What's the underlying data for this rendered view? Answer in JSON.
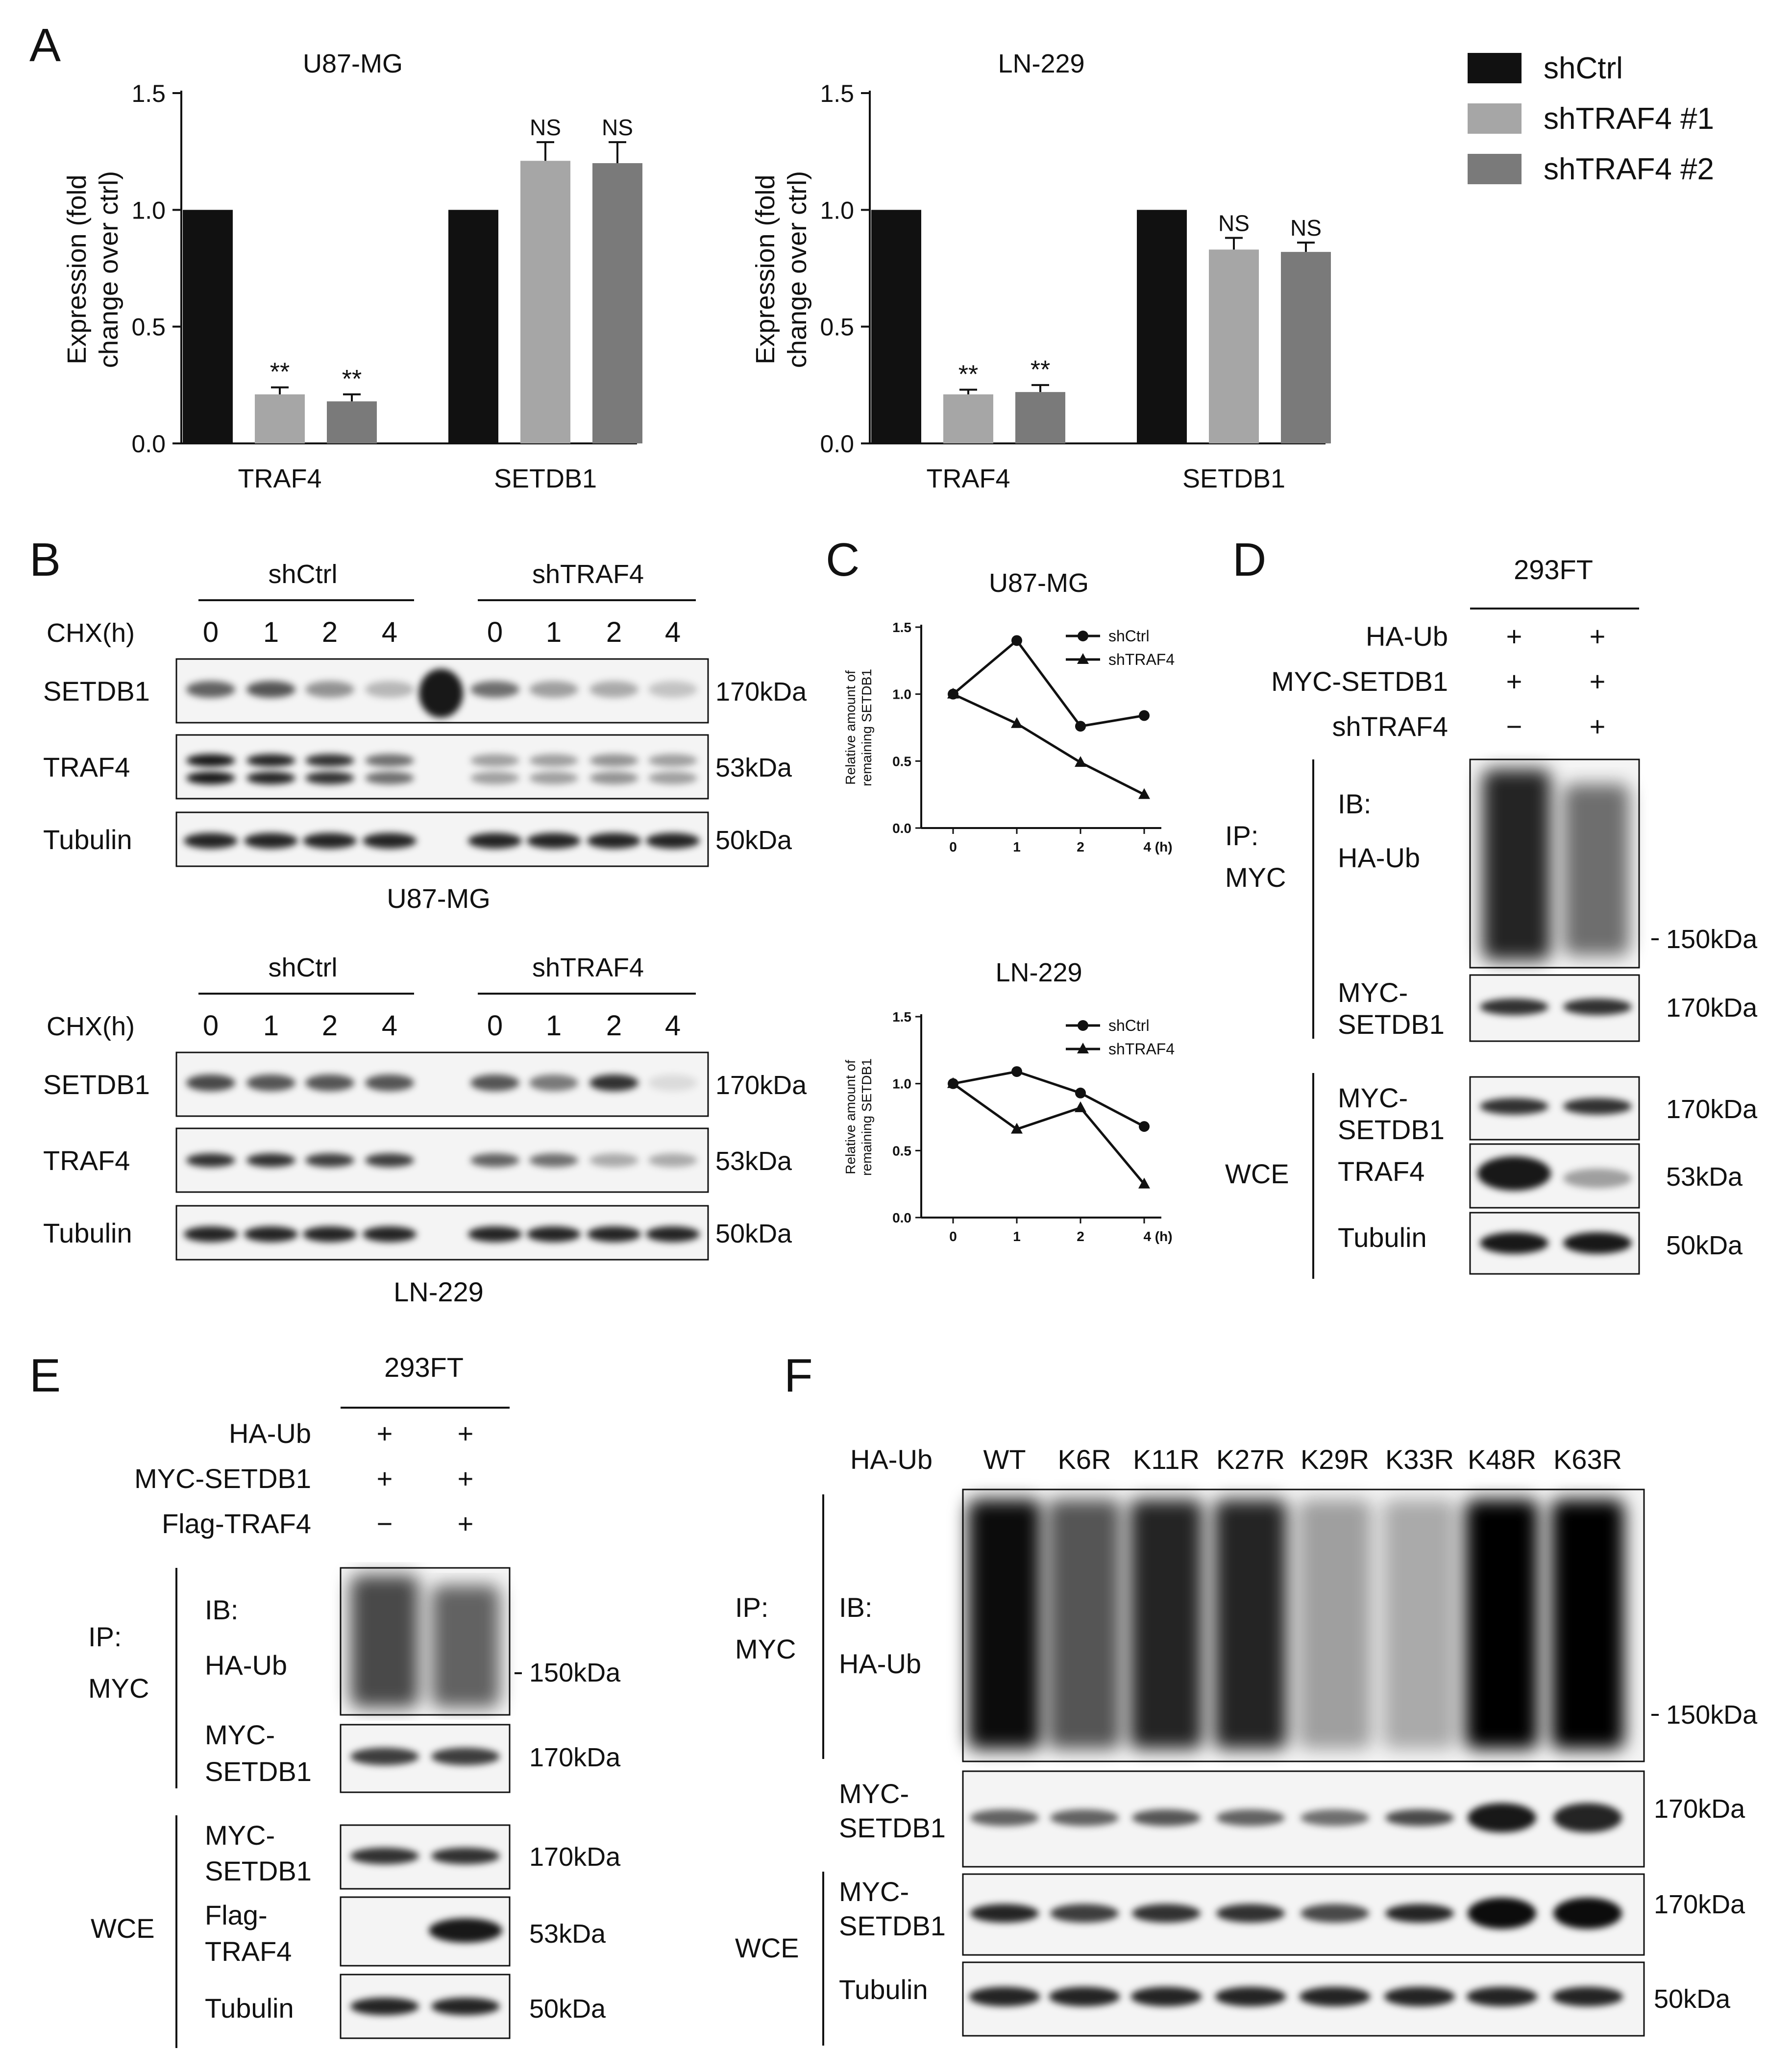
{
  "panels": {
    "A": {
      "letter": "A",
      "legend": [
        {
          "label": "shCtrl",
          "color": "#111111"
        },
        {
          "label": "shTRAF4 #1",
          "color": "#a6a6a6"
        },
        {
          "label": "shTRAF4 #2",
          "color": "#7a7a7a"
        }
      ],
      "ylabel_lines": [
        "Expression (fold",
        "change over ctrl)"
      ],
      "yticks": [
        "0.0",
        "0.5",
        "1.0",
        "1.5"
      ]
    },
    "B": {
      "letter": "B",
      "group_labels": [
        "shCtrl",
        "shTRAF4"
      ],
      "chx_label": "CHX(h)",
      "times": [
        "0",
        "1",
        "2",
        "4",
        "0",
        "1",
        "2",
        "4"
      ],
      "row_labels": [
        "SETDB1",
        "TRAF4",
        "Tubulin"
      ],
      "kda": [
        "170kDa",
        "53kDa",
        "50kDa"
      ],
      "cell_lines": [
        "U87-MG",
        "LN-229"
      ]
    },
    "C": {
      "letter": "C",
      "ylabel_lines": [
        "Relative amount of",
        "remaining SETDB1"
      ],
      "xticks": [
        "0",
        "1",
        "2",
        "4 (h)"
      ],
      "yticks": [
        "0.0",
        "0.5",
        "1.0",
        "1.5"
      ]
    },
    "D": {
      "letter": "D",
      "cell": "293FT",
      "conditions": [
        {
          "label": "HA-Ub",
          "signs": [
            "+",
            "+"
          ]
        },
        {
          "label": "MYC-SETDB1",
          "signs": [
            "+",
            "+"
          ]
        },
        {
          "label": "shTRAF4",
          "signs": [
            "−",
            "+"
          ]
        }
      ],
      "ip": [
        "IP:",
        "MYC"
      ],
      "ib": [
        "IB:",
        "HA-Ub"
      ],
      "myc_setdb1": [
        "MYC-",
        "SETDB1"
      ],
      "wce": "WCE",
      "traf4": "TRAF4",
      "tubulin": "Tubulin",
      "kda": [
        "150kDa",
        "170kDa",
        "170kDa",
        "53kDa",
        "50kDa"
      ]
    },
    "E": {
      "letter": "E",
      "cell": "293FT",
      "conditions": [
        {
          "label": "HA-Ub",
          "signs": [
            "+",
            "+"
          ]
        },
        {
          "label": "MYC-SETDB1",
          "signs": [
            "+",
            "+"
          ]
        },
        {
          "label": "Flag-TRAF4",
          "signs": [
            "−",
            "+"
          ]
        }
      ],
      "ip": [
        "IP:",
        "MYC"
      ],
      "ib": [
        "IB:",
        "HA-Ub"
      ],
      "myc_setdb1": [
        "MYC-",
        "SETDB1"
      ],
      "wce": "WCE",
      "flag_traf4": [
        "Flag-",
        "TRAF4"
      ],
      "tubulin": "Tubulin",
      "kda": [
        "150kDa",
        "170kDa",
        "170kDa",
        "53kDa",
        "50kDa"
      ]
    },
    "F": {
      "letter": "F",
      "haub": "HA-Ub",
      "mutants": [
        "WT",
        "K6R",
        "K11R",
        "K27R",
        "K29R",
        "K33R",
        "K48R",
        "K63R"
      ],
      "ip": [
        "IP:",
        "MYC"
      ],
      "ib": [
        "IB:",
        "HA-Ub"
      ],
      "myc_setdb1": [
        "MYC-",
        "SETDB1"
      ],
      "wce": "WCE",
      "tubulin": "Tubulin",
      "kda": [
        "150kDa",
        "170kDa",
        "170kDa",
        "50kDa"
      ]
    }
  },
  "chart_data": [
    {
      "type": "bar",
      "title": "U87-MG",
      "categories": [
        "TRAF4",
        "SETDB1"
      ],
      "series": [
        {
          "name": "shCtrl",
          "values": [
            1.0,
            1.0
          ],
          "errors": [
            0,
            0
          ]
        },
        {
          "name": "shTRAF4 #1",
          "values": [
            0.21,
            1.21
          ],
          "errors": [
            0.03,
            0.08
          ]
        },
        {
          "name": "shTRAF4 #2",
          "values": [
            0.18,
            1.2
          ],
          "errors": [
            0.03,
            0.09
          ]
        }
      ],
      "annotations": [
        [
          "",
          "**",
          "**"
        ],
        [
          "",
          "NS",
          "NS"
        ]
      ],
      "ylabel": "Expression (fold change over ctrl)",
      "ylim": [
        0,
        1.5
      ]
    },
    {
      "type": "bar",
      "title": "LN-229",
      "categories": [
        "TRAF4",
        "SETDB1"
      ],
      "series": [
        {
          "name": "shCtrl",
          "values": [
            1.0,
            1.0
          ],
          "errors": [
            0,
            0
          ]
        },
        {
          "name": "shTRAF4 #1",
          "values": [
            0.21,
            0.83
          ],
          "errors": [
            0.02,
            0.05
          ]
        },
        {
          "name": "shTRAF4 #2",
          "values": [
            0.22,
            0.82
          ],
          "errors": [
            0.03,
            0.04
          ]
        }
      ],
      "annotations": [
        [
          "",
          "**",
          "**"
        ],
        [
          "",
          "NS",
          "NS"
        ]
      ],
      "ylabel": "Expression (fold change over ctrl)",
      "ylim": [
        0,
        1.5
      ]
    },
    {
      "type": "line",
      "title": "U87-MG",
      "x": [
        0,
        1,
        2,
        4
      ],
      "series": [
        {
          "name": "shCtrl",
          "values": [
            1.0,
            1.4,
            0.76,
            0.84
          ],
          "marker": "circle"
        },
        {
          "name": "shTRAF4",
          "values": [
            1.0,
            0.78,
            0.49,
            0.25
          ],
          "marker": "triangle"
        }
      ],
      "ylabel": "Relative amount of remaining SETDB1",
      "ylim": [
        0,
        1.5
      ],
      "legend": "top-right"
    },
    {
      "type": "line",
      "title": "LN-229",
      "x": [
        0,
        1,
        2,
        4
      ],
      "series": [
        {
          "name": "shCtrl",
          "values": [
            1.0,
            1.09,
            0.93,
            0.68
          ],
          "marker": "circle"
        },
        {
          "name": "shTRAF4",
          "values": [
            1.0,
            0.66,
            0.82,
            0.25
          ],
          "marker": "triangle"
        }
      ],
      "ylabel": "Relative amount of remaining SETDB1",
      "ylim": [
        0,
        1.5
      ],
      "legend": "top-right"
    }
  ]
}
